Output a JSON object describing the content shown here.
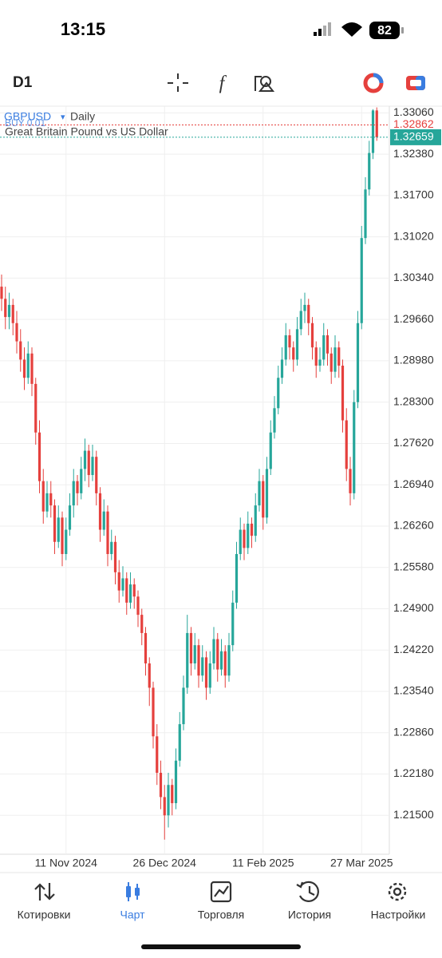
{
  "status_bar": {
    "time": "13:15",
    "battery": "82"
  },
  "toolbar": {
    "timeframe": "D1"
  },
  "chart_data": {
    "type": "candlestick",
    "symbol": "GBPUSD",
    "timeframe": "Daily",
    "description": "Great Britain Pound vs US Dollar",
    "order_label": "BUY 0.01",
    "up_color": "#26a69a",
    "down_color": "#e5403d",
    "grid": true,
    "categories": [
      null,
      null,
      null,
      null,
      null,
      null,
      null,
      null,
      null,
      null,
      null,
      null,
      null,
      null,
      null,
      null,
      null,
      "11 Nov 2024",
      null,
      null,
      null,
      null,
      null,
      null,
      null,
      null,
      null,
      null,
      null,
      null,
      null,
      null,
      null,
      null,
      null,
      null,
      null,
      null,
      null,
      null,
      null,
      null,
      null,
      "26 Dec 2024",
      null,
      null,
      null,
      null,
      null,
      null,
      null,
      null,
      null,
      null,
      null,
      null,
      null,
      null,
      null,
      null,
      null,
      null,
      null,
      null,
      null,
      null,
      null,
      null,
      null,
      "11 Feb 2025",
      null,
      null,
      null,
      null,
      null,
      null,
      null,
      null,
      null,
      null,
      null,
      null,
      null,
      null,
      null,
      null,
      null,
      null,
      null,
      null,
      null,
      null,
      null,
      null,
      null,
      "27 Mar 2025",
      null,
      null,
      null,
      null
    ],
    "open": [
      1.302,
      1.3,
      1.297,
      1.299,
      1.296,
      1.293,
      1.29,
      1.287,
      1.291,
      1.286,
      1.278,
      1.27,
      1.265,
      1.268,
      1.266,
      1.26,
      1.264,
      1.258,
      1.262,
      1.266,
      1.27,
      1.268,
      1.272,
      1.275,
      1.271,
      1.274,
      1.268,
      1.262,
      1.265,
      1.258,
      1.26,
      1.255,
      1.252,
      1.254,
      1.25,
      1.253,
      1.251,
      1.248,
      1.245,
      1.24,
      1.236,
      1.228,
      1.222,
      1.218,
      1.215,
      1.22,
      1.217,
      1.224,
      1.23,
      1.236,
      1.245,
      1.24,
      1.243,
      1.238,
      1.241,
      1.236,
      1.24,
      1.244,
      1.239,
      1.242,
      1.238,
      1.243,
      1.25,
      1.258,
      1.262,
      1.259,
      1.263,
      1.261,
      1.266,
      1.27,
      1.264,
      1.272,
      1.278,
      1.282,
      1.287,
      1.29,
      1.294,
      1.292,
      1.29,
      1.295,
      1.298,
      1.299,
      1.296,
      1.292,
      1.289,
      1.29,
      1.294,
      1.291,
      1.288,
      1.292,
      1.289,
      1.28,
      1.272,
      1.268,
      1.283,
      1.296,
      1.31,
      1.318,
      1.324,
      1.331
    ],
    "high": [
      1.304,
      1.302,
      1.301,
      1.3,
      1.298,
      1.295,
      1.292,
      1.293,
      1.292,
      1.287,
      1.28,
      1.272,
      1.27,
      1.27,
      1.267,
      1.266,
      1.265,
      1.264,
      1.268,
      1.272,
      1.271,
      1.274,
      1.277,
      1.276,
      1.276,
      1.275,
      1.269,
      1.267,
      1.266,
      1.262,
      1.261,
      1.257,
      1.256,
      1.255,
      1.255,
      1.254,
      1.252,
      1.249,
      1.246,
      1.241,
      1.237,
      1.23,
      1.224,
      1.22,
      1.222,
      1.221,
      1.226,
      1.232,
      1.238,
      1.248,
      1.246,
      1.245,
      1.244,
      1.243,
      1.242,
      1.242,
      1.246,
      1.245,
      1.244,
      1.243,
      1.245,
      1.252,
      1.26,
      1.264,
      1.263,
      1.265,
      1.264,
      1.268,
      1.272,
      1.271,
      1.274,
      1.28,
      1.284,
      1.289,
      1.292,
      1.296,
      1.295,
      1.293,
      1.297,
      1.3,
      1.301,
      1.3,
      1.297,
      1.293,
      1.292,
      1.296,
      1.295,
      1.292,
      1.294,
      1.293,
      1.29,
      1.282,
      1.274,
      1.285,
      1.298,
      1.312,
      1.32,
      1.326,
      1.3312,
      1.3315
    ],
    "low": [
      1.298,
      1.295,
      1.295,
      1.294,
      1.291,
      1.288,
      1.285,
      1.286,
      1.284,
      1.276,
      1.268,
      1.263,
      1.264,
      1.264,
      1.258,
      1.259,
      1.256,
      1.257,
      1.261,
      1.264,
      1.266,
      1.267,
      1.27,
      1.269,
      1.27,
      1.266,
      1.26,
      1.261,
      1.256,
      1.257,
      1.253,
      1.25,
      1.251,
      1.248,
      1.249,
      1.249,
      1.246,
      1.243,
      1.238,
      1.233,
      1.226,
      1.22,
      1.216,
      1.211,
      1.213,
      1.215,
      1.216,
      1.223,
      1.229,
      1.235,
      1.238,
      1.239,
      1.236,
      1.237,
      1.234,
      1.235,
      1.239,
      1.237,
      1.238,
      1.236,
      1.237,
      1.242,
      1.249,
      1.257,
      1.257,
      1.258,
      1.259,
      1.26,
      1.265,
      1.262,
      1.263,
      1.271,
      1.277,
      1.281,
      1.286,
      1.289,
      1.29,
      1.288,
      1.289,
      1.294,
      1.296,
      1.294,
      1.29,
      1.287,
      1.288,
      1.289,
      1.289,
      1.286,
      1.287,
      1.287,
      1.278,
      1.27,
      1.266,
      1.267,
      1.282,
      1.295,
      1.309,
      1.317,
      1.323,
      1.326
    ],
    "close": [
      1.3,
      1.297,
      1.299,
      1.296,
      1.293,
      1.29,
      1.287,
      1.291,
      1.286,
      1.278,
      1.27,
      1.265,
      1.268,
      1.266,
      1.26,
      1.264,
      1.258,
      1.262,
      1.266,
      1.27,
      1.268,
      1.272,
      1.275,
      1.271,
      1.274,
      1.268,
      1.262,
      1.265,
      1.258,
      1.26,
      1.255,
      1.252,
      1.254,
      1.25,
      1.253,
      1.251,
      1.248,
      1.245,
      1.24,
      1.236,
      1.228,
      1.222,
      1.218,
      1.215,
      1.22,
      1.217,
      1.224,
      1.23,
      1.236,
      1.245,
      1.24,
      1.243,
      1.238,
      1.241,
      1.236,
      1.24,
      1.244,
      1.239,
      1.242,
      1.238,
      1.243,
      1.25,
      1.258,
      1.262,
      1.259,
      1.263,
      1.261,
      1.266,
      1.27,
      1.264,
      1.272,
      1.278,
      1.282,
      1.287,
      1.29,
      1.294,
      1.292,
      1.29,
      1.295,
      1.298,
      1.299,
      1.296,
      1.292,
      1.289,
      1.29,
      1.294,
      1.291,
      1.288,
      1.292,
      1.289,
      1.28,
      1.272,
      1.268,
      1.283,
      1.296,
      1.31,
      1.318,
      1.324,
      1.331,
      1.32659
    ],
    "ylim": [
      1.2086,
      1.3317
    ],
    "yticks": [
      {
        "value": 1.3306,
        "label": "1.33060"
      },
      {
        "value": 1.3238,
        "label": "1.32380"
      },
      {
        "value": 1.317,
        "label": "1.31700"
      },
      {
        "value": 1.3102,
        "label": "1.31020"
      },
      {
        "value": 1.3034,
        "label": "1.30340"
      },
      {
        "value": 1.2966,
        "label": "1.29660"
      },
      {
        "value": 1.2898,
        "label": "1.28980"
      },
      {
        "value": 1.283,
        "label": "1.28300"
      },
      {
        "value": 1.2762,
        "label": "1.27620"
      },
      {
        "value": 1.2694,
        "label": "1.26940"
      },
      {
        "value": 1.2626,
        "label": "1.26260"
      },
      {
        "value": 1.2558,
        "label": "1.25580"
      },
      {
        "value": 1.249,
        "label": "1.24900"
      },
      {
        "value": 1.2422,
        "label": "1.24220"
      },
      {
        "value": 1.2354,
        "label": "1.23540"
      },
      {
        "value": 1.2286,
        "label": "1.22860"
      },
      {
        "value": 1.2218,
        "label": "1.22180"
      },
      {
        "value": 1.215,
        "label": "1.21500"
      }
    ],
    "price_lines": [
      {
        "value": 1.32862,
        "color": "#e5403d"
      },
      {
        "value": 1.32659,
        "color": "#26a69a"
      }
    ]
  },
  "nav": {
    "items": [
      "Котировки",
      "Чарт",
      "Торговля",
      "История",
      "Настройки"
    ],
    "active": 1
  }
}
